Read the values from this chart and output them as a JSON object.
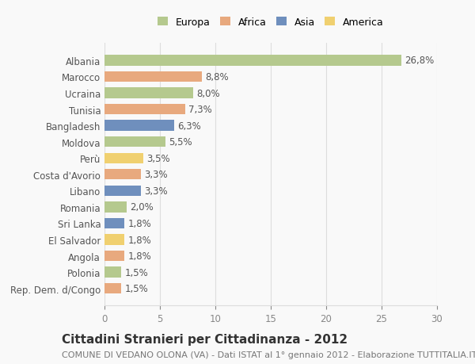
{
  "countries": [
    "Albania",
    "Marocco",
    "Ucraina",
    "Tunisia",
    "Bangladesh",
    "Moldova",
    "Perù",
    "Costa d'Avorio",
    "Libano",
    "Romania",
    "Sri Lanka",
    "El Salvador",
    "Angola",
    "Polonia",
    "Rep. Dem. d/Congo"
  ],
  "values": [
    26.8,
    8.8,
    8.0,
    7.3,
    6.3,
    5.5,
    3.5,
    3.3,
    3.3,
    2.0,
    1.8,
    1.8,
    1.8,
    1.5,
    1.5
  ],
  "labels": [
    "26,8%",
    "8,8%",
    "8,0%",
    "7,3%",
    "6,3%",
    "5,5%",
    "3,5%",
    "3,3%",
    "3,3%",
    "2,0%",
    "1,8%",
    "1,8%",
    "1,8%",
    "1,5%",
    "1,5%"
  ],
  "continents": [
    "Europa",
    "Africa",
    "Europa",
    "Africa",
    "Asia",
    "Europa",
    "America",
    "Africa",
    "Asia",
    "Europa",
    "Asia",
    "America",
    "Africa",
    "Europa",
    "Africa"
  ],
  "colors": {
    "Europa": "#b5c98e",
    "Africa": "#e8a97e",
    "Asia": "#6f8fbd",
    "America": "#f0d070"
  },
  "xlim": [
    0,
    30
  ],
  "xticks": [
    0,
    5,
    10,
    15,
    20,
    25,
    30
  ],
  "title": "Cittadini Stranieri per Cittadinanza - 2012",
  "subtitle": "COMUNE DI VEDANO OLONA (VA) - Dati ISTAT al 1° gennaio 2012 - Elaborazione TUTTITALIA.IT",
  "background_color": "#f9f9f9",
  "grid_color": "#dddddd",
  "bar_height": 0.65,
  "label_fontsize": 8.5,
  "tick_fontsize": 8.5,
  "title_fontsize": 11,
  "subtitle_fontsize": 8,
  "legend_order": [
    "Europa",
    "Africa",
    "Asia",
    "America"
  ]
}
